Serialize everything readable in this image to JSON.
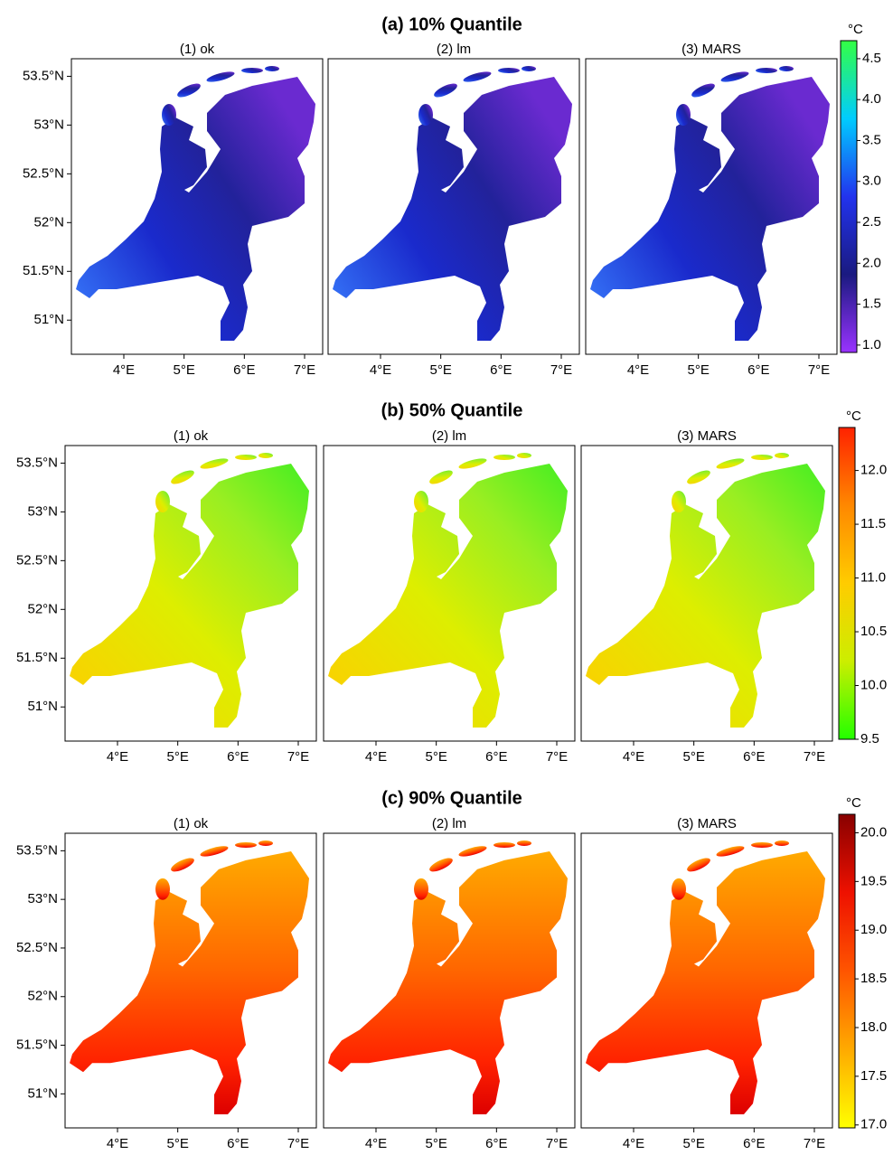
{
  "rows": [
    {
      "title": "(a) 10% Quantile",
      "panels": [
        "(1) ok",
        "(2) lm",
        "(3) MARS"
      ],
      "xlim": [
        3.13,
        7.3
      ],
      "ylim": [
        50.65,
        53.68
      ],
      "xticks": [
        {
          "value": 4,
          "label": "4°E"
        },
        {
          "value": 5,
          "label": "5°E"
        },
        {
          "value": 6,
          "label": "6°E"
        },
        {
          "value": 7,
          "label": "7°E"
        }
      ],
      "yticks": [
        {
          "value": 51,
          "label": "51°N"
        },
        {
          "value": 51.5,
          "label": "51.5°N"
        },
        {
          "value": 52,
          "label": "52°N"
        },
        {
          "value": 52.5,
          "label": "52.5°N"
        },
        {
          "value": 53,
          "label": "53°N"
        },
        {
          "value": 53.5,
          "label": "53.5°N"
        }
      ],
      "colorbar": {
        "unit": "°C",
        "lim": [
          0.91,
          4.72
        ],
        "colors": [
          "#9933ff",
          "#1a1a80",
          "#2233ee",
          "#00ccff",
          "#33ff44"
        ],
        "ticks": [
          {
            "value": 1,
            "label": "1.0"
          },
          1.5,
          {
            "value": 2,
            "label": "2.0"
          },
          2.5,
          {
            "value": 3,
            "label": "3.0"
          },
          3.5,
          {
            "value": 4,
            "label": "4.0"
          },
          4.5
        ]
      }
    },
    {
      "title": "(b) 50% Quantile",
      "panels": [
        "(1) ok",
        "(2) lm",
        "(3) MARS"
      ],
      "xlim": [
        3.13,
        7.3
      ],
      "ylim": [
        50.65,
        53.68
      ],
      "xticks": [
        {
          "value": 4,
          "label": "4°E"
        },
        {
          "value": 5,
          "label": "5°E"
        },
        {
          "value": 6,
          "label": "6°E"
        },
        {
          "value": 7,
          "label": "7°E"
        }
      ],
      "yticks": [
        {
          "value": 51,
          "label": "51°N"
        },
        {
          "value": 51.5,
          "label": "51.5°N"
        },
        {
          "value": 52,
          "label": "52°N"
        },
        {
          "value": 52.5,
          "label": "52.5°N"
        },
        {
          "value": 53,
          "label": "53°N"
        },
        {
          "value": 53.5,
          "label": "53.5°N"
        }
      ],
      "colorbar": {
        "unit": "°C",
        "lim": [
          9.5,
          12.4
        ],
        "colors": [
          "#22ff00",
          "#ccee00",
          "#ffcc00",
          "#ff8800",
          "#ff2200"
        ],
        "ticks": [
          9.5,
          {
            "value": 10,
            "label": "10.0"
          },
          10.5,
          {
            "value": 11,
            "label": "11.0"
          },
          11.5,
          {
            "value": 12,
            "label": "12.0"
          }
        ]
      }
    },
    {
      "title": "(c) 90% Quantile",
      "panels": [
        "(1) ok",
        "(2) lm",
        "(3) MARS"
      ],
      "xlim": [
        3.13,
        7.3
      ],
      "ylim": [
        50.65,
        53.68
      ],
      "xticks": [
        {
          "value": 4,
          "label": "4°E"
        },
        {
          "value": 5,
          "label": "5°E"
        },
        {
          "value": 6,
          "label": "6°E"
        },
        {
          "value": 7,
          "label": "7°E"
        }
      ],
      "yticks": [
        {
          "value": 51,
          "label": "51°N"
        },
        {
          "value": 51.5,
          "label": "51.5°N"
        },
        {
          "value": 52,
          "label": "52°N"
        },
        {
          "value": 52.5,
          "label": "52.5°N"
        },
        {
          "value": 53,
          "label": "53°N"
        },
        {
          "value": 53.5,
          "label": "53.5°N"
        }
      ],
      "colorbar": {
        "unit": "°C",
        "lim": [
          16.97,
          20.19
        ],
        "colors": [
          "#ffff00",
          "#ffaa00",
          "#ff5500",
          "#ee1100",
          "#880000"
        ],
        "ticks": [
          {
            "value": 17,
            "label": "17.0"
          },
          17.5,
          {
            "value": 18,
            "label": "18.0"
          },
          18.5,
          {
            "value": 19,
            "label": "19.0"
          },
          19.5,
          {
            "value": 20,
            "label": "20.0"
          }
        ]
      }
    }
  ]
}
